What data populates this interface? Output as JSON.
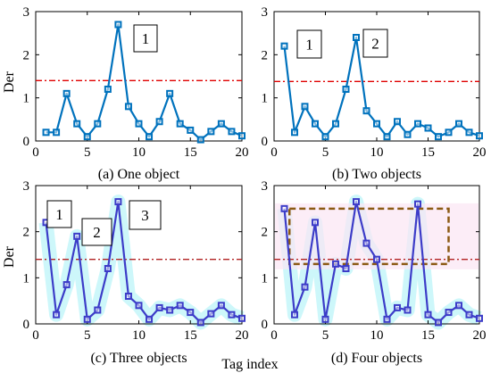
{
  "figure": {
    "ylabel": "Der",
    "xlabel": "Tag index"
  },
  "chart_data": [
    {
      "type": "line",
      "caption": "(a) One object",
      "x": [
        1,
        2,
        3,
        4,
        5,
        6,
        7,
        8,
        9,
        10,
        11,
        12,
        13,
        14,
        15,
        16,
        17,
        18,
        19,
        20
      ],
      "series": [
        {
          "color": "#0072BD",
          "values": [
            0.2,
            0.2,
            1.1,
            0.4,
            0.1,
            0.4,
            1.2,
            2.7,
            0.8,
            0.4,
            0.1,
            0.45,
            1.1,
            0.4,
            0.25,
            0.03,
            0.22,
            0.4,
            0.22,
            0.12
          ]
        }
      ],
      "threshold": 1.4,
      "threshold_color": "#E00000",
      "annotations": [
        "1"
      ],
      "xlim": [
        0,
        20
      ],
      "ylim": [
        0,
        3
      ],
      "xticks": [
        0,
        5,
        10,
        15,
        20
      ],
      "yticks": [
        0,
        1,
        2,
        3
      ],
      "ylabel": "Der"
    },
    {
      "type": "line",
      "caption": "(b) Two objects",
      "x": [
        1,
        2,
        3,
        4,
        5,
        6,
        7,
        8,
        9,
        10,
        11,
        12,
        13,
        14,
        15,
        16,
        17,
        18,
        19,
        20
      ],
      "series": [
        {
          "color": "#0072BD",
          "values": [
            2.2,
            0.2,
            0.8,
            0.4,
            0.1,
            0.4,
            1.2,
            2.4,
            0.7,
            0.4,
            0.1,
            0.45,
            0.15,
            0.4,
            0.3,
            0.1,
            0.2,
            0.4,
            0.2,
            0.12
          ]
        }
      ],
      "threshold": 1.38,
      "threshold_color": "#E00000",
      "annotations": [
        "1",
        "2"
      ],
      "xlim": [
        0,
        20
      ],
      "ylim": [
        0,
        3
      ],
      "xticks": [
        0,
        5,
        10,
        15,
        20
      ],
      "yticks": [
        0,
        1,
        2,
        3
      ]
    },
    {
      "type": "line",
      "caption": "(c) Three objects",
      "x": [
        1,
        2,
        3,
        4,
        5,
        6,
        7,
        8,
        9,
        10,
        11,
        12,
        13,
        14,
        15,
        16,
        17,
        18,
        19,
        20
      ],
      "series": [
        {
          "color": "#3C3CC8",
          "values": [
            2.2,
            0.2,
            0.85,
            1.9,
            0.1,
            0.3,
            1.2,
            2.65,
            0.6,
            0.4,
            0.1,
            0.35,
            0.3,
            0.4,
            0.25,
            0.03,
            0.22,
            0.4,
            0.2,
            0.12
          ]
        }
      ],
      "threshold": 1.4,
      "threshold_color": "#B22222",
      "annotations": [
        "1",
        "2",
        "3"
      ],
      "xlim": [
        0,
        20
      ],
      "ylim": [
        0,
        3
      ],
      "xticks": [
        0,
        5,
        10,
        15,
        20
      ],
      "yticks": [
        0,
        1,
        2,
        3
      ],
      "ylabel": "Der"
    },
    {
      "type": "line",
      "caption": "(d) Four objects",
      "x": [
        1,
        2,
        3,
        4,
        5,
        6,
        7,
        8,
        9,
        10,
        11,
        12,
        13,
        14,
        15,
        16,
        17,
        18,
        19,
        20
      ],
      "series": [
        {
          "color": "#3C3CC8",
          "values": [
            2.5,
            0.2,
            0.8,
            2.2,
            0.1,
            1.3,
            1.2,
            2.65,
            1.75,
            1.4,
            0.1,
            0.35,
            0.3,
            2.6,
            0.2,
            0.03,
            0.25,
            0.4,
            0.2,
            0.12
          ]
        }
      ],
      "threshold": 1.4,
      "threshold_color": "#B22222",
      "highlight_box": {
        "x": [
          1.5,
          17
        ],
        "y": [
          1.3,
          2.5
        ]
      },
      "xlim": [
        0,
        20
      ],
      "ylim": [
        0,
        3
      ],
      "xticks": [
        0,
        5,
        10,
        15,
        20
      ],
      "yticks": [
        0,
        1,
        2,
        3
      ]
    }
  ]
}
